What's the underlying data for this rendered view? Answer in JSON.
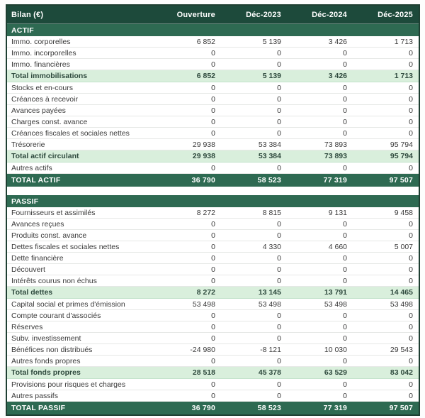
{
  "colors": {
    "header_bg": "#1d4a3b",
    "section_bg": "#2e6a52",
    "subtotal_bg": "#d9efdc",
    "subtotal_text": "#2f4a3e",
    "body_text": "#3a3a3a",
    "outer_border": "#1e3f32"
  },
  "table": {
    "title": "Bilan (€)",
    "columns": [
      "Ouverture",
      "Déc-2023",
      "Déc-2024",
      "Déc-2025"
    ],
    "sections": [
      {
        "name": "ACTIF",
        "rows": [
          {
            "label": "Immo. corporelles",
            "type": "normal",
            "values": [
              "6 852",
              "5 139",
              "3 426",
              "1 713"
            ]
          },
          {
            "label": "Immo. incorporelles",
            "type": "normal",
            "values": [
              "0",
              "0",
              "0",
              "0"
            ]
          },
          {
            "label": "Immo. financières",
            "type": "normal",
            "values": [
              "0",
              "0",
              "0",
              "0"
            ]
          },
          {
            "label": "Total immobilisations",
            "type": "subtotal",
            "values": [
              "6 852",
              "5 139",
              "3 426",
              "1 713"
            ]
          },
          {
            "label": "Stocks et en-cours",
            "type": "normal",
            "values": [
              "0",
              "0",
              "0",
              "0"
            ]
          },
          {
            "label": "Créances à recevoir",
            "type": "normal",
            "values": [
              "0",
              "0",
              "0",
              "0"
            ]
          },
          {
            "label": "Avances payées",
            "type": "normal",
            "values": [
              "0",
              "0",
              "0",
              "0"
            ]
          },
          {
            "label": "Charges const. avance",
            "type": "normal",
            "values": [
              "0",
              "0",
              "0",
              "0"
            ]
          },
          {
            "label": "Créances fiscales et sociales nettes",
            "type": "normal",
            "values": [
              "0",
              "0",
              "0",
              "0"
            ]
          },
          {
            "label": "Trésorerie",
            "type": "normal",
            "values": [
              "29 938",
              "53 384",
              "73 893",
              "95 794"
            ]
          },
          {
            "label": "Total actif circulant",
            "type": "subtotal",
            "values": [
              "29 938",
              "53 384",
              "73 893",
              "95 794"
            ]
          },
          {
            "label": "Autres actifs",
            "type": "normal",
            "values": [
              "0",
              "0",
              "0",
              "0"
            ]
          },
          {
            "label": "TOTAL ACTIF",
            "type": "total",
            "values": [
              "36 790",
              "58 523",
              "77 319",
              "97 507"
            ]
          }
        ]
      },
      {
        "name": "PASSIF",
        "rows": [
          {
            "label": "Fournisseurs et assimilés",
            "type": "normal",
            "values": [
              "8 272",
              "8 815",
              "9 131",
              "9 458"
            ]
          },
          {
            "label": "Avances reçues",
            "type": "normal",
            "values": [
              "0",
              "0",
              "0",
              "0"
            ]
          },
          {
            "label": "Produits const. avance",
            "type": "normal",
            "values": [
              "0",
              "0",
              "0",
              "0"
            ]
          },
          {
            "label": "Dettes fiscales et sociales nettes",
            "type": "normal",
            "values": [
              "0",
              "4 330",
              "4 660",
              "5 007"
            ]
          },
          {
            "label": "Dette financière",
            "type": "normal",
            "values": [
              "0",
              "0",
              "0",
              "0"
            ]
          },
          {
            "label": "Découvert",
            "type": "normal",
            "values": [
              "0",
              "0",
              "0",
              "0"
            ]
          },
          {
            "label": "Intérêts courus non échus",
            "type": "normal",
            "values": [
              "0",
              "0",
              "0",
              "0"
            ]
          },
          {
            "label": "Total dettes",
            "type": "subtotal",
            "values": [
              "8 272",
              "13 145",
              "13 791",
              "14 465"
            ]
          },
          {
            "label": "Capital social et primes d'émission",
            "type": "normal",
            "values": [
              "53 498",
              "53 498",
              "53 498",
              "53 498"
            ]
          },
          {
            "label": "Compte courant d'associés",
            "type": "normal",
            "values": [
              "0",
              "0",
              "0",
              "0"
            ]
          },
          {
            "label": "Réserves",
            "type": "normal",
            "values": [
              "0",
              "0",
              "0",
              "0"
            ]
          },
          {
            "label": "Subv. investissement",
            "type": "normal",
            "values": [
              "0",
              "0",
              "0",
              "0"
            ]
          },
          {
            "label": "Bénéfices non distribués",
            "type": "normal",
            "values": [
              "-24 980",
              "-8 121",
              "10 030",
              "29 543"
            ]
          },
          {
            "label": "Autres fonds propres",
            "type": "normal",
            "values": [
              "0",
              "0",
              "0",
              "0"
            ]
          },
          {
            "label": "Total fonds propres",
            "type": "subtotal",
            "values": [
              "28 518",
              "45 378",
              "63 529",
              "83 042"
            ]
          },
          {
            "label": "Provisions pour risques et charges",
            "type": "normal",
            "values": [
              "0",
              "0",
              "0",
              "0"
            ]
          },
          {
            "label": "Autres passifs",
            "type": "normal",
            "values": [
              "0",
              "0",
              "0",
              "0"
            ]
          },
          {
            "label": "TOTAL PASSIF",
            "type": "total",
            "values": [
              "36 790",
              "58 523",
              "77 319",
              "97 507"
            ]
          }
        ]
      }
    ]
  }
}
